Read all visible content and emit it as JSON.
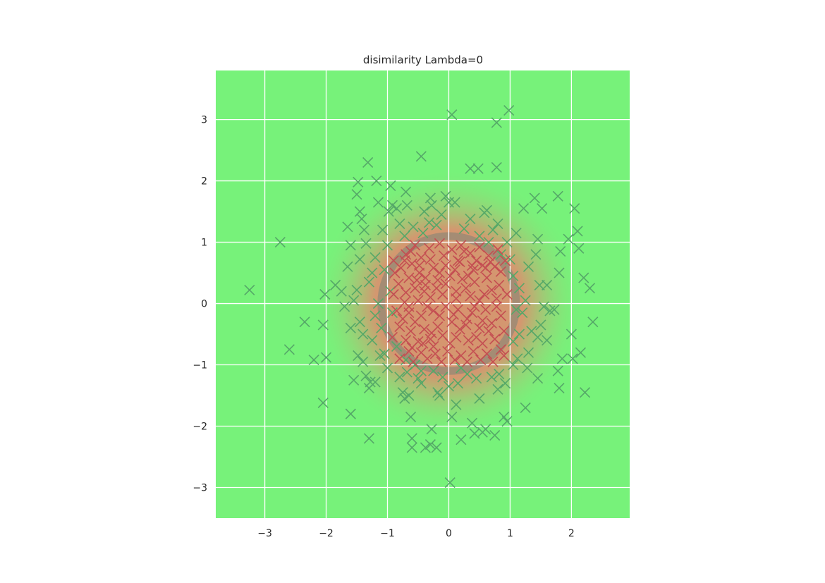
{
  "chart_data": {
    "type": "scatter",
    "title": "disimilarity Lambda=0",
    "xlabel": "",
    "ylabel": "",
    "xlim": [
      -3.8,
      2.95
    ],
    "ylim": [
      -3.5,
      3.8
    ],
    "xticks": [
      -3,
      -2,
      -1,
      0,
      1,
      2
    ],
    "yticks": [
      -3,
      -2,
      -1,
      0,
      1,
      2,
      3
    ],
    "xtick_labels": [
      "−3",
      "−2",
      "−1",
      "0",
      "1",
      "2"
    ],
    "ytick_labels": [
      "−3",
      "−2",
      "−1",
      "0",
      "1",
      "2",
      "3"
    ],
    "grid": true,
    "marker": "x",
    "background_color": "#77f27a",
    "region_color": "#d8936f",
    "boundary_color": "#9b8a74",
    "decision_boundary": {
      "shape": "circle",
      "center": [
        0,
        0
      ],
      "radius": 1.1
    },
    "series": [
      {
        "color": "#c44e52",
        "points": [
          [
            -0.55,
            0.95
          ],
          [
            -0.7,
            0.8
          ],
          [
            -0.9,
            0.7
          ],
          [
            -0.78,
            0.58
          ],
          [
            -0.62,
            0.85
          ],
          [
            -0.45,
            0.75
          ],
          [
            -0.32,
            0.9
          ],
          [
            -0.15,
            0.98
          ],
          [
            0.05,
            0.88
          ],
          [
            0.2,
            0.95
          ],
          [
            0.35,
            0.82
          ],
          [
            0.5,
            0.92
          ],
          [
            0.65,
            0.78
          ],
          [
            0.8,
            0.88
          ],
          [
            0.92,
            0.7
          ],
          [
            0.75,
            0.6
          ],
          [
            0.55,
            0.62
          ],
          [
            0.4,
            0.55
          ],
          [
            0.18,
            0.68
          ],
          [
            -0.05,
            0.62
          ],
          [
            -0.25,
            0.58
          ],
          [
            -0.48,
            0.5
          ],
          [
            -0.65,
            0.42
          ],
          [
            -0.82,
            0.32
          ],
          [
            -0.7,
            0.18
          ],
          [
            -0.55,
            0.25
          ],
          [
            -0.38,
            0.3
          ],
          [
            -0.18,
            0.38
          ],
          [
            0.02,
            0.45
          ],
          [
            0.22,
            0.4
          ],
          [
            0.42,
            0.35
          ],
          [
            0.62,
            0.42
          ],
          [
            0.82,
            0.3
          ],
          [
            0.95,
            0.15
          ],
          [
            0.78,
            0.08
          ],
          [
            0.58,
            0.15
          ],
          [
            0.35,
            0.12
          ],
          [
            0.12,
            0.2
          ],
          [
            -0.1,
            0.15
          ],
          [
            -0.3,
            0.1
          ],
          [
            -0.5,
            0.05
          ],
          [
            -0.72,
            0.02
          ],
          [
            -0.85,
            -0.12
          ],
          [
            -0.65,
            -0.15
          ],
          [
            -0.45,
            -0.2
          ],
          [
            -0.25,
            -0.12
          ],
          [
            -0.05,
            -0.05
          ],
          [
            0.15,
            -0.1
          ],
          [
            0.38,
            -0.15
          ],
          [
            0.6,
            -0.1
          ],
          [
            0.85,
            -0.2
          ],
          [
            0.7,
            -0.32
          ],
          [
            0.5,
            -0.4
          ],
          [
            0.28,
            -0.35
          ],
          [
            0.05,
            -0.3
          ],
          [
            -0.18,
            -0.38
          ],
          [
            -0.4,
            -0.42
          ],
          [
            -0.62,
            -0.45
          ],
          [
            -0.8,
            -0.38
          ],
          [
            -0.7,
            -0.6
          ],
          [
            -0.5,
            -0.62
          ],
          [
            -0.3,
            -0.58
          ],
          [
            -0.1,
            -0.52
          ],
          [
            0.12,
            -0.55
          ],
          [
            0.32,
            -0.6
          ],
          [
            0.55,
            -0.65
          ],
          [
            0.75,
            -0.58
          ],
          [
            0.85,
            -0.75
          ],
          [
            0.62,
            -0.82
          ],
          [
            0.4,
            -0.78
          ],
          [
            0.2,
            -0.85
          ],
          [
            -0.02,
            -0.78
          ],
          [
            -0.22,
            -0.82
          ],
          [
            -0.45,
            -0.8
          ],
          [
            -0.65,
            -0.78
          ],
          [
            -0.8,
            -0.9
          ],
          [
            -0.58,
            -0.95
          ],
          [
            -0.35,
            -0.9
          ],
          [
            -0.12,
            -0.95
          ],
          [
            0.1,
            -0.92
          ],
          [
            0.3,
            -0.95
          ],
          [
            0.52,
            -0.92
          ],
          [
            0.72,
            -0.95
          ],
          [
            0.9,
            -0.85
          ],
          [
            -0.88,
            0.5
          ],
          [
            -0.92,
            -0.55
          ],
          [
            -0.3,
            0.72
          ],
          [
            0.28,
            0.25
          ],
          [
            -0.15,
            -0.2
          ],
          [
            0.45,
            0.7
          ],
          [
            0.02,
            -0.65
          ],
          [
            -0.55,
            -0.3
          ],
          [
            0.65,
            -0.45
          ],
          [
            -0.38,
            0.42
          ],
          [
            0.1,
            0.55
          ],
          [
            -0.6,
            0.65
          ],
          [
            0.3,
            -0.25
          ],
          [
            -0.2,
            0.25
          ],
          [
            0.7,
            0.22
          ],
          [
            -0.42,
            -0.65
          ],
          [
            0.18,
            -0.42
          ],
          [
            0.5,
            0.05
          ],
          [
            -0.75,
            -0.25
          ],
          [
            0.85,
            0.52
          ],
          [
            -0.08,
            0.78
          ],
          [
            0.38,
            0.62
          ],
          [
            -0.52,
            0.38
          ],
          [
            0.08,
            -0.18
          ],
          [
            -0.28,
            -0.48
          ],
          [
            0.6,
            0.58
          ],
          [
            -0.9,
            0.15
          ],
          [
            0.25,
            0.85
          ],
          [
            -0.65,
            -0.05
          ],
          [
            0.45,
            -0.55
          ],
          [
            -0.15,
            0.5
          ],
          [
            0.78,
            -0.05
          ],
          [
            -0.35,
            -0.05
          ],
          [
            0.12,
            0.08
          ],
          [
            -0.48,
            0.62
          ],
          [
            0.55,
            -0.28
          ],
          [
            -0.05,
            0.32
          ],
          [
            0.32,
            0.45
          ],
          [
            -0.72,
            0.7
          ],
          [
            0.9,
            -0.45
          ],
          [
            -0.25,
            -0.7
          ],
          [
            0.68,
            0.68
          ],
          [
            -0.6,
            -0.72
          ],
          [
            0.15,
            0.7
          ],
          [
            -0.4,
            0.2
          ],
          [
            0.42,
            -0.05
          ]
        ]
      },
      {
        "color": "#55a868",
        "points": [
          [
            -3.25,
            0.22
          ],
          [
            -2.75,
            1.0
          ],
          [
            -2.6,
            -0.75
          ],
          [
            -2.35,
            -0.3
          ],
          [
            -2.2,
            -0.92
          ],
          [
            -2.05,
            -0.35
          ],
          [
            -2.0,
            -0.88
          ],
          [
            -2.05,
            -1.62
          ],
          [
            -2.02,
            0.15
          ],
          [
            -1.85,
            0.3
          ],
          [
            -1.75,
            0.2
          ],
          [
            -1.7,
            -0.05
          ],
          [
            -1.65,
            0.6
          ],
          [
            -1.6,
            0.95
          ],
          [
            -1.65,
            1.25
          ],
          [
            -1.55,
            -1.25
          ],
          [
            -1.6,
            -1.8
          ],
          [
            -1.5,
            1.78
          ],
          [
            -1.48,
            1.98
          ],
          [
            -1.45,
            1.5
          ],
          [
            -1.42,
            1.38
          ],
          [
            -1.38,
            1.2
          ],
          [
            -1.32,
            2.3
          ],
          [
            -1.35,
            0.98
          ],
          [
            -1.45,
            0.72
          ],
          [
            -1.5,
            0.22
          ],
          [
            -1.45,
            -0.3
          ],
          [
            -1.4,
            -0.5
          ],
          [
            -1.48,
            -0.85
          ],
          [
            -1.4,
            -0.95
          ],
          [
            -1.35,
            -1.18
          ],
          [
            -1.28,
            -1.28
          ],
          [
            -1.3,
            -1.38
          ],
          [
            -1.3,
            -2.2
          ],
          [
            -1.2,
            -1.28
          ],
          [
            -1.18,
            2.0
          ],
          [
            -1.15,
            1.65
          ],
          [
            -1.2,
            0.75
          ],
          [
            -1.25,
            0.5
          ],
          [
            -1.15,
            0.0
          ],
          [
            -1.1,
            -0.4
          ],
          [
            -1.12,
            -0.85
          ],
          [
            -1.05,
            -0.82
          ],
          [
            -1.08,
            1.2
          ],
          [
            -0.98,
            1.5
          ],
          [
            -0.95,
            1.92
          ],
          [
            -0.92,
            1.6
          ],
          [
            -0.85,
            1.55
          ],
          [
            -0.8,
            1.3
          ],
          [
            -0.72,
            1.1
          ],
          [
            -0.68,
            1.6
          ],
          [
            -0.7,
            1.82
          ],
          [
            -0.75,
            -1.45
          ],
          [
            -0.72,
            -1.55
          ],
          [
            -0.65,
            -1.5
          ],
          [
            -0.68,
            -1.12
          ],
          [
            -0.62,
            -1.85
          ],
          [
            -0.6,
            -2.2
          ],
          [
            -0.6,
            -2.35
          ],
          [
            -0.55,
            -1.0
          ],
          [
            -0.5,
            -1.22
          ],
          [
            -0.45,
            -1.3
          ],
          [
            -0.42,
            1.15
          ],
          [
            -0.45,
            2.4
          ],
          [
            -0.4,
            1.5
          ],
          [
            -0.3,
            1.72
          ],
          [
            -0.28,
            1.6
          ],
          [
            -0.25,
            -1.1
          ],
          [
            -0.28,
            -2.05
          ],
          [
            -0.3,
            -2.3
          ],
          [
            -0.38,
            -2.35
          ],
          [
            -0.2,
            -2.35
          ],
          [
            -0.18,
            -1.45
          ],
          [
            -0.1,
            -1.2
          ],
          [
            -0.12,
            1.45
          ],
          [
            -0.05,
            1.75
          ],
          [
            0.0,
            1.65
          ],
          [
            0.05,
            3.08
          ],
          [
            0.02,
            -2.92
          ],
          [
            0.1,
            1.65
          ],
          [
            0.05,
            -1.85
          ],
          [
            0.12,
            -1.65
          ],
          [
            0.15,
            -1.3
          ],
          [
            0.2,
            -1.05
          ],
          [
            0.2,
            -2.22
          ],
          [
            0.3,
            -1.15
          ],
          [
            0.35,
            2.2
          ],
          [
            0.38,
            -1.95
          ],
          [
            0.42,
            -2.12
          ],
          [
            0.48,
            2.2
          ],
          [
            0.5,
            -1.55
          ],
          [
            0.55,
            -2.1
          ],
          [
            0.58,
            1.48
          ],
          [
            0.62,
            1.52
          ],
          [
            0.6,
            -2.05
          ],
          [
            0.7,
            -1.2
          ],
          [
            0.72,
            1.2
          ],
          [
            0.75,
            -2.15
          ],
          [
            0.78,
            2.95
          ],
          [
            0.78,
            2.22
          ],
          [
            0.8,
            1.3
          ],
          [
            0.8,
            -1.4
          ],
          [
            0.85,
            0.8
          ],
          [
            0.9,
            -1.85
          ],
          [
            0.95,
            -1.92
          ],
          [
            0.98,
            3.15
          ],
          [
            1.05,
            0.45
          ],
          [
            1.05,
            -1.0
          ],
          [
            1.1,
            1.15
          ],
          [
            1.1,
            -0.1
          ],
          [
            1.12,
            -0.9
          ],
          [
            1.15,
            -0.5
          ],
          [
            1.2,
            -0.15
          ],
          [
            1.22,
            1.55
          ],
          [
            1.25,
            -1.7
          ],
          [
            1.28,
            -1.05
          ],
          [
            1.3,
            0.6
          ],
          [
            1.35,
            -0.45
          ],
          [
            1.4,
            1.72
          ],
          [
            1.42,
            0.8
          ],
          [
            1.45,
            1.05
          ],
          [
            1.45,
            -1.22
          ],
          [
            1.48,
            0.3
          ],
          [
            1.5,
            -0.35
          ],
          [
            1.52,
            1.55
          ],
          [
            1.55,
            -0.05
          ],
          [
            1.6,
            -0.6
          ],
          [
            1.65,
            -0.12
          ],
          [
            1.72,
            -0.1
          ],
          [
            1.78,
            1.75
          ],
          [
            1.78,
            -1.1
          ],
          [
            1.8,
            -1.38
          ],
          [
            1.8,
            0.5
          ],
          [
            1.82,
            0.85
          ],
          [
            1.85,
            -0.9
          ],
          [
            1.95,
            1.05
          ],
          [
            2.0,
            -0.5
          ],
          [
            2.02,
            -0.9
          ],
          [
            2.05,
            1.55
          ],
          [
            2.1,
            1.18
          ],
          [
            2.12,
            0.9
          ],
          [
            2.15,
            -0.8
          ],
          [
            2.2,
            0.42
          ],
          [
            2.22,
            -1.45
          ],
          [
            2.3,
            0.25
          ],
          [
            2.35,
            -0.3
          ],
          [
            -0.95,
            0.2
          ],
          [
            -1.05,
            0.55
          ],
          [
            -0.92,
            -0.15
          ],
          [
            -0.85,
            -0.7
          ],
          [
            -0.58,
            1.25
          ],
          [
            -0.2,
            1.28
          ],
          [
            0.25,
            1.22
          ],
          [
            0.5,
            1.1
          ],
          [
            0.95,
            1.0
          ],
          [
            1.15,
            0.25
          ],
          [
            1.05,
            -0.62
          ],
          [
            0.82,
            -1.15
          ],
          [
            0.45,
            -1.22
          ],
          [
            0.0,
            -1.35
          ],
          [
            -0.45,
            -1.1
          ],
          [
            -1.0,
            -1.05
          ],
          [
            -1.25,
            -0.6
          ],
          [
            -1.3,
            0.35
          ],
          [
            -1.0,
            0.95
          ],
          [
            -0.32,
            1.32
          ],
          [
            0.35,
            1.38
          ],
          [
            1.0,
            0.72
          ],
          [
            1.25,
            0.05
          ],
          [
            0.92,
            -1.3
          ],
          [
            -0.8,
            -1.2
          ],
          [
            -1.55,
            0.05
          ],
          [
            -1.6,
            -0.4
          ],
          [
            1.6,
            0.3
          ],
          [
            1.3,
            -0.8
          ],
          [
            -0.15,
            -1.5
          ],
          [
            0.65,
            1.0
          ],
          [
            -0.7,
            -0.92
          ],
          [
            1.45,
            -0.55
          ],
          [
            -1.2,
            -0.2
          ]
        ]
      }
    ]
  }
}
